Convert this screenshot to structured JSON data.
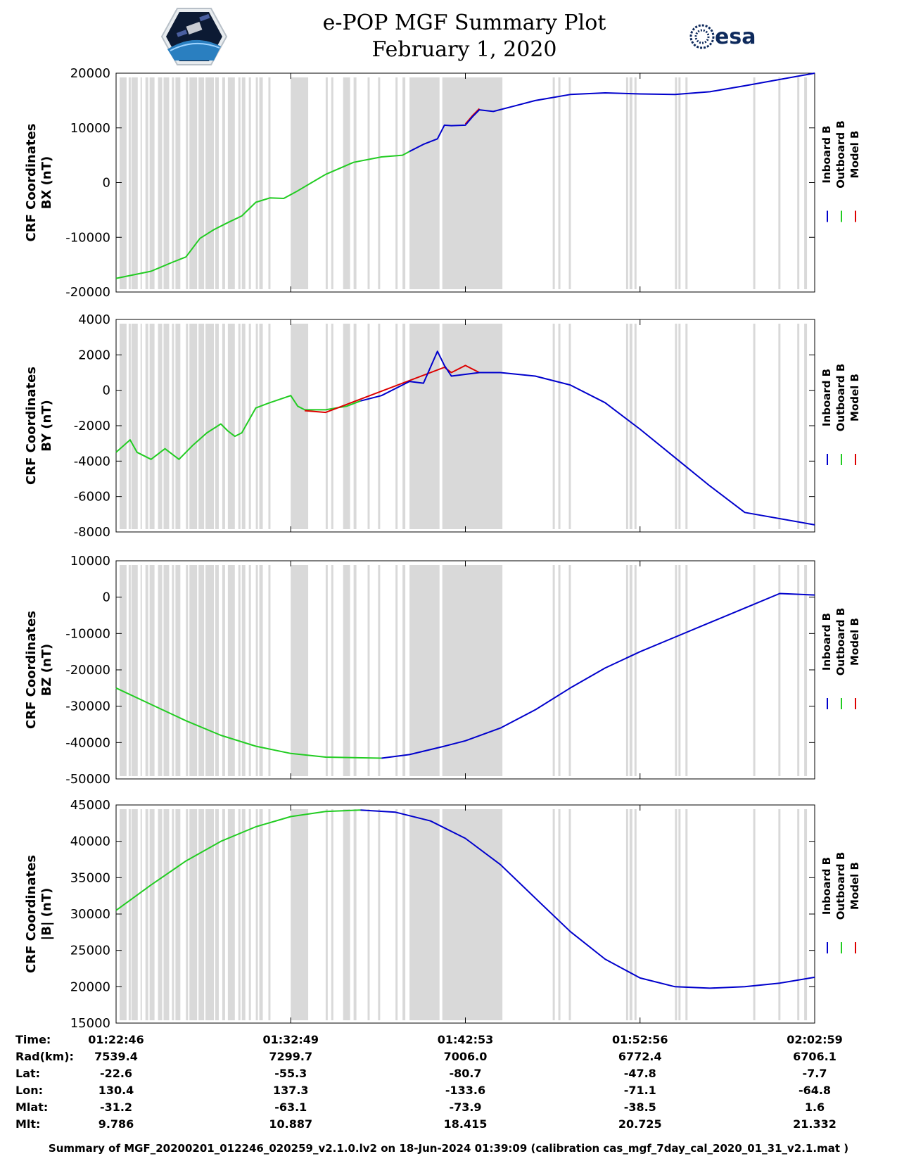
{
  "title": {
    "line1": "e-POP MGF Summary Plot",
    "line2": "February 1, 2020"
  },
  "logos": {
    "left": "cassiope-mission-logo",
    "right": "esa"
  },
  "colors": {
    "inboard": "#0000cc",
    "outboard": "#22cc22",
    "model": "#dd0000",
    "gap": "#d9d9d9"
  },
  "chart_data": [
    {
      "type": "line",
      "ylabel": [
        "CRF Coordinates",
        "BX (nT)"
      ],
      "ylim": [
        -20000,
        20000
      ],
      "yticks": [
        "20000",
        "10000",
        "0",
        "-10000",
        "-20000"
      ],
      "ytick_values": [
        20000,
        10000,
        0,
        -10000,
        -20000
      ],
      "legend": [
        "Inboard B",
        "Outboard B",
        "Model B"
      ],
      "legend_placement": "right",
      "series": {
        "outboard": {
          "x": [
            0,
            0.05,
            0.08,
            0.1,
            0.12,
            0.14,
            0.16,
            0.18,
            0.2,
            0.22,
            0.24,
            0.26,
            0.28,
            0.3,
            0.34,
            0.38,
            0.41,
            0.42
          ],
          "y": [
            -17500,
            -16200,
            -14600,
            -13600,
            -10200,
            -8600,
            -7300,
            -6100,
            -3600,
            -2800,
            -2900,
            -1500,
            0,
            1500,
            3700,
            4700,
            5000,
            5700
          ]
        },
        "inboard": {
          "x": [
            0.42,
            0.44,
            0.46,
            0.47,
            0.48,
            0.5,
            0.51,
            0.52,
            0.54,
            0.57,
            0.6,
            0.65,
            0.7,
            0.75,
            0.8,
            0.85,
            0.9,
            1.0
          ],
          "y": [
            5700,
            7000,
            8000,
            10500,
            10400,
            10500,
            12000,
            13300,
            13000,
            14000,
            15000,
            16100,
            16400,
            16200,
            16100,
            16600,
            17700,
            20000
          ]
        },
        "model": {
          "x": [
            0.5,
            0.51,
            0.52
          ],
          "y": [
            10700,
            12200,
            13500
          ]
        }
      }
    },
    {
      "type": "line",
      "ylabel": [
        "CRF Coordinates",
        "BY (nT)"
      ],
      "ylim": [
        -8000,
        4000
      ],
      "yticks": [
        "4000",
        "2000",
        "0",
        "-2000",
        "-4000",
        "-6000",
        "-8000"
      ],
      "ytick_values": [
        4000,
        2000,
        0,
        -2000,
        -4000,
        -6000,
        -8000
      ],
      "legend": [
        "Inboard B",
        "Outboard B",
        "Model B"
      ],
      "legend_placement": "right",
      "series": {
        "outboard": {
          "x": [
            0,
            0.02,
            0.03,
            0.05,
            0.07,
            0.09,
            0.11,
            0.13,
            0.15,
            0.16,
            0.17,
            0.18,
            0.2,
            0.22,
            0.25,
            0.26,
            0.27,
            0.3,
            0.33,
            0.35
          ],
          "y": [
            -3500,
            -2800,
            -3500,
            -3900,
            -3300,
            -3900,
            -3100,
            -2400,
            -1900,
            -2300,
            -2600,
            -2400,
            -1000,
            -700,
            -300,
            -900,
            -1100,
            -1100,
            -900,
            -600
          ]
        },
        "inboard": {
          "x": [
            0.35,
            0.38,
            0.4,
            0.42,
            0.44,
            0.46,
            0.47,
            0.48,
            0.5,
            0.52,
            0.55,
            0.6,
            0.65,
            0.7,
            0.75,
            0.8,
            0.85,
            0.9,
            1.0
          ],
          "y": [
            -600,
            -300,
            100,
            500,
            400,
            2200,
            1400,
            800,
            900,
            1000,
            1000,
            800,
            300,
            -700,
            -2200,
            -3800,
            -5400,
            -6900,
            -7600
          ]
        },
        "model": {
          "x": [
            0.27,
            0.3,
            0.33,
            0.47,
            0.48,
            0.5,
            0.52
          ],
          "y": [
            -1150,
            -1250,
            -800,
            1300,
            1000,
            1400,
            1000
          ]
        }
      }
    },
    {
      "type": "line",
      "ylabel": [
        "CRF Coordinates",
        "BZ (nT)"
      ],
      "ylim": [
        -50000,
        10000
      ],
      "yticks": [
        "10000",
        "0",
        "-10000",
        "-20000",
        "-30000",
        "-40000",
        "-50000"
      ],
      "ytick_values": [
        10000,
        0,
        -10000,
        -20000,
        -30000,
        -40000,
        -50000
      ],
      "legend": [
        "Inboard B",
        "Outboard B",
        "Model B"
      ],
      "legend_placement": "right",
      "series": {
        "outboard": {
          "x": [
            0,
            0.05,
            0.1,
            0.15,
            0.2,
            0.25,
            0.3,
            0.38
          ],
          "y": [
            -25000,
            -29500,
            -34000,
            -38000,
            -41000,
            -43000,
            -44000,
            -44300
          ]
        },
        "inboard": {
          "x": [
            0.38,
            0.42,
            0.47,
            0.5,
            0.55,
            0.6,
            0.65,
            0.7,
            0.75,
            0.8,
            0.85,
            0.9,
            0.95,
            1.0
          ],
          "y": [
            -44300,
            -43300,
            -41000,
            -39500,
            -36000,
            -31000,
            -25000,
            -19500,
            -15000,
            -11000,
            -7000,
            -3000,
            1000,
            600
          ]
        },
        "model": {
          "x": [],
          "y": []
        }
      }
    },
    {
      "type": "line",
      "ylabel": [
        "CRF Coordinates",
        "|B| (nT)"
      ],
      "ylim": [
        15000,
        45000
      ],
      "yticks": [
        "45000",
        "40000",
        "35000",
        "30000",
        "25000",
        "20000",
        "15000"
      ],
      "ytick_values": [
        45000,
        40000,
        35000,
        30000,
        25000,
        20000,
        15000
      ],
      "legend": [
        "Inboard B",
        "Outboard B",
        "Model B"
      ],
      "legend_placement": "right",
      "series": {
        "outboard": {
          "x": [
            0,
            0.05,
            0.1,
            0.15,
            0.2,
            0.25,
            0.3,
            0.35
          ],
          "y": [
            30500,
            34000,
            37300,
            40000,
            42000,
            43400,
            44100,
            44300
          ]
        },
        "inboard": {
          "x": [
            0.35,
            0.4,
            0.45,
            0.5,
            0.55,
            0.6,
            0.65,
            0.7,
            0.75,
            0.8,
            0.85,
            0.9,
            0.95,
            1.0
          ],
          "y": [
            44300,
            44000,
            42800,
            40400,
            36800,
            32200,
            27600,
            23800,
            21200,
            20000,
            19800,
            20000,
            20500,
            21300
          ]
        },
        "model": {
          "x": [],
          "y": []
        }
      }
    }
  ],
  "gap_bands": [
    [
      0.005,
      0.015
    ],
    [
      0.018,
      0.021
    ],
    [
      0.022,
      0.031
    ],
    [
      0.035,
      0.037
    ],
    [
      0.042,
      0.046
    ],
    [
      0.048,
      0.055
    ],
    [
      0.06,
      0.066
    ],
    [
      0.068,
      0.076
    ],
    [
      0.08,
      0.083
    ],
    [
      0.085,
      0.092
    ],
    [
      0.1,
      0.103
    ],
    [
      0.105,
      0.116
    ],
    [
      0.118,
      0.126
    ],
    [
      0.128,
      0.14
    ],
    [
      0.142,
      0.147
    ],
    [
      0.152,
      0.156
    ],
    [
      0.16,
      0.17
    ],
    [
      0.175,
      0.178
    ],
    [
      0.18,
      0.185
    ],
    [
      0.19,
      0.193
    ],
    [
      0.2,
      0.203
    ],
    [
      0.205,
      0.21
    ],
    [
      0.218,
      0.221
    ],
    [
      0.25,
      0.275
    ],
    [
      0.3,
      0.303
    ],
    [
      0.308,
      0.311
    ],
    [
      0.325,
      0.335
    ],
    [
      0.34,
      0.344
    ],
    [
      0.36,
      0.363
    ],
    [
      0.375,
      0.378
    ],
    [
      0.4,
      0.403
    ],
    [
      0.41,
      0.414
    ],
    [
      0.42,
      0.463
    ],
    [
      0.467,
      0.553
    ],
    [
      0.625,
      0.628
    ],
    [
      0.633,
      0.636
    ],
    [
      0.648,
      0.651
    ],
    [
      0.73,
      0.733
    ],
    [
      0.735,
      0.739
    ],
    [
      0.742,
      0.745
    ],
    [
      0.8,
      0.803
    ],
    [
      0.805,
      0.808
    ],
    [
      0.815,
      0.818
    ],
    [
      0.912,
      0.915
    ],
    [
      0.948,
      0.951
    ],
    [
      0.975,
      0.978
    ],
    [
      0.985,
      0.989
    ]
  ],
  "x_axis": {
    "tick_positions": [
      0,
      0.25,
      0.5,
      0.75,
      1
    ],
    "rows": [
      {
        "label": "Time:",
        "values": [
          "01:22:46",
          "01:32:49",
          "01:42:53",
          "01:52:56",
          "02:02:59"
        ]
      },
      {
        "label": "Rad(km):",
        "values": [
          "7539.4",
          "7299.7",
          "7006.0",
          "6772.4",
          "6706.1"
        ]
      },
      {
        "label": "Lat:",
        "values": [
          "-22.6",
          "-55.3",
          "-80.7",
          "-47.8",
          "-7.7"
        ]
      },
      {
        "label": "Lon:",
        "values": [
          "130.4",
          "137.3",
          "-133.6",
          "-71.1",
          "-64.8"
        ]
      },
      {
        "label": "Mlat:",
        "values": [
          "-31.2",
          "-63.1",
          "-73.9",
          "-38.5",
          "1.6"
        ]
      },
      {
        "label": "Mlt:",
        "values": [
          "9.786",
          "10.887",
          "18.415",
          "20.725",
          "21.332"
        ]
      }
    ]
  },
  "footer": "Summary of MGF_20200201_012246_020259_v2.1.0.lv2 on 18-Jun-2024 01:39:09 (calibration cas_mgf_7day_cal_2020_01_31_v2.1.mat )"
}
